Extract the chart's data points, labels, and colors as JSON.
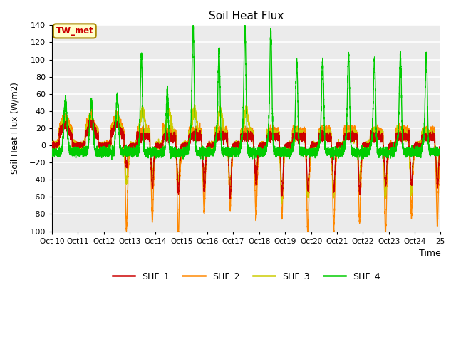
{
  "title": "Soil Heat Flux",
  "ylabel": "Soil Heat Flux (W/m2)",
  "xlabel": "Time",
  "ylim": [
    -100,
    140
  ],
  "yticks": [
    -100,
    -80,
    -60,
    -40,
    -20,
    0,
    20,
    40,
    60,
    80,
    100,
    120,
    140
  ],
  "xtick_labels": [
    "Oct 10",
    "Oct 11",
    "Oct 12",
    "Oct 13",
    "Oct 14",
    "Oct 15",
    "Oct 16",
    "Oct 17",
    "Oct 18",
    "Oct 19",
    "Oct 20",
    "Oct 21",
    "Oct 22",
    "Oct 23",
    "Oct 24",
    "Oct 25"
  ],
  "series_colors": {
    "SHF_1": "#cc0000",
    "SHF_2": "#ff8800",
    "SHF_3": "#cccc00",
    "SHF_4": "#00cc00"
  },
  "legend_labels": [
    "SHF_1",
    "SHF_2",
    "SHF_3",
    "SHF_4"
  ],
  "annotation_text": "TW_met",
  "annotation_color": "#cc0000",
  "annotation_bg": "#ffffcc",
  "annotation_border": "#aa8800",
  "plot_bg": "#ebebeb",
  "linewidth": 1.0,
  "n_points": 7200
}
